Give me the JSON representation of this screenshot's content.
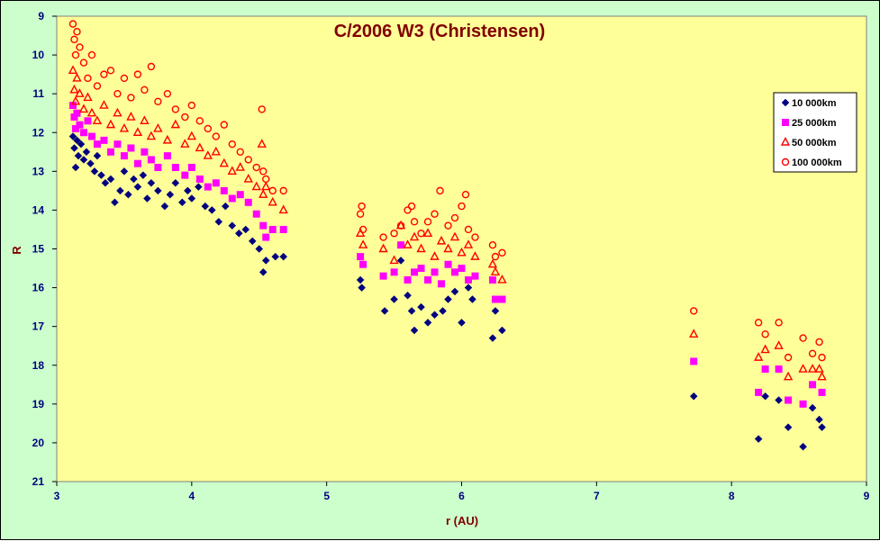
{
  "chart_data": {
    "type": "scatter",
    "title": "C/2006 W3 (Christensen)",
    "xlabel": "r (AU)",
    "ylabel": "R",
    "xlim": [
      3,
      9
    ],
    "ylim": [
      9,
      21
    ],
    "y_inverted": true,
    "x_ticks": [
      3,
      4,
      5,
      6,
      7,
      8,
      9
    ],
    "y_ticks": [
      9,
      10,
      11,
      12,
      13,
      14,
      15,
      16,
      17,
      18,
      19,
      20,
      21
    ],
    "legend_position": "right",
    "plot_background": "#ffff99",
    "outer_background": "#ccffcc",
    "series": [
      {
        "name": "10 000km",
        "marker": "diamond",
        "color": "#000080",
        "points": [
          [
            3.12,
            12.1
          ],
          [
            3.13,
            12.4
          ],
          [
            3.14,
            12.9
          ],
          [
            3.15,
            12.2
          ],
          [
            3.16,
            12.6
          ],
          [
            3.18,
            12.3
          ],
          [
            3.2,
            12.7
          ],
          [
            3.22,
            12.5
          ],
          [
            3.25,
            12.8
          ],
          [
            3.28,
            13.0
          ],
          [
            3.3,
            12.6
          ],
          [
            3.33,
            13.1
          ],
          [
            3.36,
            13.3
          ],
          [
            3.4,
            13.2
          ],
          [
            3.43,
            13.8
          ],
          [
            3.47,
            13.5
          ],
          [
            3.5,
            13.0
          ],
          [
            3.53,
            13.6
          ],
          [
            3.57,
            13.2
          ],
          [
            3.6,
            13.4
          ],
          [
            3.64,
            13.1
          ],
          [
            3.67,
            13.7
          ],
          [
            3.7,
            13.3
          ],
          [
            3.75,
            13.5
          ],
          [
            3.8,
            13.9
          ],
          [
            3.84,
            13.6
          ],
          [
            3.88,
            13.3
          ],
          [
            3.93,
            13.8
          ],
          [
            3.97,
            13.5
          ],
          [
            4.0,
            13.7
          ],
          [
            4.05,
            13.4
          ],
          [
            4.1,
            13.9
          ],
          [
            4.15,
            14.0
          ],
          [
            4.2,
            14.3
          ],
          [
            4.25,
            13.9
          ],
          [
            4.3,
            14.4
          ],
          [
            4.35,
            14.6
          ],
          [
            4.4,
            14.5
          ],
          [
            4.45,
            14.8
          ],
          [
            4.5,
            15.0
          ],
          [
            4.53,
            15.6
          ],
          [
            4.55,
            15.3
          ],
          [
            4.62,
            15.2
          ],
          [
            4.68,
            15.2
          ],
          [
            5.25,
            15.8
          ],
          [
            5.26,
            16.0
          ],
          [
            5.43,
            16.6
          ],
          [
            5.5,
            16.3
          ],
          [
            5.55,
            15.3
          ],
          [
            5.6,
            16.2
          ],
          [
            5.63,
            16.6
          ],
          [
            5.65,
            17.1
          ],
          [
            5.7,
            16.5
          ],
          [
            5.75,
            16.9
          ],
          [
            5.8,
            16.7
          ],
          [
            5.86,
            16.6
          ],
          [
            5.9,
            16.3
          ],
          [
            5.95,
            16.1
          ],
          [
            6.0,
            16.9
          ],
          [
            6.05,
            16.0
          ],
          [
            6.08,
            16.3
          ],
          [
            6.23,
            17.3
          ],
          [
            6.25,
            16.6
          ],
          [
            6.3,
            17.1
          ],
          [
            7.72,
            18.8
          ],
          [
            8.2,
            19.9
          ],
          [
            8.25,
            18.8
          ],
          [
            8.35,
            18.9
          ],
          [
            8.42,
            19.6
          ],
          [
            8.53,
            20.1
          ],
          [
            8.6,
            19.1
          ],
          [
            8.65,
            19.4
          ],
          [
            8.67,
            19.6
          ]
        ]
      },
      {
        "name": "25 000km",
        "marker": "square",
        "color": "#ff00ff",
        "points": [
          [
            3.12,
            11.3
          ],
          [
            3.13,
            11.6
          ],
          [
            3.14,
            11.9
          ],
          [
            3.15,
            11.5
          ],
          [
            3.17,
            11.8
          ],
          [
            3.2,
            12.0
          ],
          [
            3.23,
            11.7
          ],
          [
            3.26,
            12.1
          ],
          [
            3.3,
            12.3
          ],
          [
            3.35,
            12.2
          ],
          [
            3.4,
            12.5
          ],
          [
            3.45,
            12.3
          ],
          [
            3.5,
            12.6
          ],
          [
            3.55,
            12.4
          ],
          [
            3.6,
            12.8
          ],
          [
            3.65,
            12.5
          ],
          [
            3.7,
            12.7
          ],
          [
            3.75,
            12.9
          ],
          [
            3.82,
            12.6
          ],
          [
            3.88,
            12.9
          ],
          [
            3.95,
            13.1
          ],
          [
            4.0,
            12.9
          ],
          [
            4.06,
            13.2
          ],
          [
            4.12,
            13.4
          ],
          [
            4.18,
            13.3
          ],
          [
            4.24,
            13.5
          ],
          [
            4.3,
            13.7
          ],
          [
            4.36,
            13.6
          ],
          [
            4.42,
            13.8
          ],
          [
            4.48,
            14.1
          ],
          [
            4.53,
            14.4
          ],
          [
            4.55,
            14.7
          ],
          [
            4.6,
            14.5
          ],
          [
            4.68,
            14.5
          ],
          [
            5.25,
            15.2
          ],
          [
            5.27,
            15.4
          ],
          [
            5.42,
            15.7
          ],
          [
            5.5,
            15.6
          ],
          [
            5.55,
            14.9
          ],
          [
            5.6,
            15.8
          ],
          [
            5.65,
            15.6
          ],
          [
            5.7,
            15.5
          ],
          [
            5.75,
            15.8
          ],
          [
            5.8,
            15.6
          ],
          [
            5.85,
            15.9
          ],
          [
            5.9,
            15.4
          ],
          [
            5.95,
            15.6
          ],
          [
            6.0,
            15.5
          ],
          [
            6.05,
            15.8
          ],
          [
            6.1,
            15.7
          ],
          [
            6.23,
            15.8
          ],
          [
            6.25,
            16.3
          ],
          [
            6.3,
            16.3
          ],
          [
            7.72,
            17.9
          ],
          [
            8.2,
            18.7
          ],
          [
            8.25,
            18.1
          ],
          [
            8.35,
            18.1
          ],
          [
            8.42,
            18.9
          ],
          [
            8.53,
            19.0
          ],
          [
            8.6,
            18.5
          ],
          [
            8.67,
            18.7
          ]
        ]
      },
      {
        "name": "50 000km",
        "marker": "triangle",
        "color": "#ff0000",
        "points": [
          [
            3.12,
            10.4
          ],
          [
            3.13,
            10.9
          ],
          [
            3.14,
            11.2
          ],
          [
            3.15,
            10.6
          ],
          [
            3.17,
            11.0
          ],
          [
            3.2,
            11.4
          ],
          [
            3.23,
            11.1
          ],
          [
            3.26,
            11.5
          ],
          [
            3.3,
            11.7
          ],
          [
            3.35,
            11.3
          ],
          [
            3.4,
            11.8
          ],
          [
            3.45,
            11.5
          ],
          [
            3.5,
            11.9
          ],
          [
            3.55,
            11.6
          ],
          [
            3.6,
            12.0
          ],
          [
            3.65,
            11.7
          ],
          [
            3.7,
            12.1
          ],
          [
            3.75,
            11.9
          ],
          [
            3.82,
            12.2
          ],
          [
            3.88,
            11.8
          ],
          [
            3.95,
            12.3
          ],
          [
            4.0,
            12.1
          ],
          [
            4.06,
            12.4
          ],
          [
            4.12,
            12.6
          ],
          [
            4.18,
            12.5
          ],
          [
            4.24,
            12.8
          ],
          [
            4.3,
            13.0
          ],
          [
            4.36,
            12.9
          ],
          [
            4.42,
            13.2
          ],
          [
            4.48,
            13.4
          ],
          [
            4.52,
            12.3
          ],
          [
            4.53,
            13.6
          ],
          [
            4.55,
            13.4
          ],
          [
            4.6,
            13.8
          ],
          [
            4.68,
            14.0
          ],
          [
            5.25,
            14.6
          ],
          [
            5.27,
            14.9
          ],
          [
            5.42,
            15.0
          ],
          [
            5.5,
            15.3
          ],
          [
            5.55,
            14.4
          ],
          [
            5.6,
            14.9
          ],
          [
            5.65,
            14.7
          ],
          [
            5.7,
            15.0
          ],
          [
            5.75,
            14.6
          ],
          [
            5.8,
            15.2
          ],
          [
            5.85,
            14.8
          ],
          [
            5.9,
            15.0
          ],
          [
            5.95,
            14.7
          ],
          [
            6.0,
            15.1
          ],
          [
            6.05,
            14.9
          ],
          [
            6.1,
            15.2
          ],
          [
            6.23,
            15.4
          ],
          [
            6.25,
            15.6
          ],
          [
            6.3,
            15.8
          ],
          [
            7.72,
            17.2
          ],
          [
            8.2,
            17.8
          ],
          [
            8.25,
            17.6
          ],
          [
            8.35,
            17.5
          ],
          [
            8.42,
            18.3
          ],
          [
            8.53,
            18.1
          ],
          [
            8.6,
            18.1
          ],
          [
            8.65,
            18.1
          ],
          [
            8.67,
            18.3
          ]
        ]
      },
      {
        "name": "100 000km",
        "marker": "circle",
        "color": "#ff0000",
        "points": [
          [
            3.12,
            9.2
          ],
          [
            3.13,
            9.6
          ],
          [
            3.14,
            10.0
          ],
          [
            3.15,
            9.4
          ],
          [
            3.17,
            9.8
          ],
          [
            3.2,
            10.2
          ],
          [
            3.23,
            10.6
          ],
          [
            3.26,
            10.0
          ],
          [
            3.3,
            10.8
          ],
          [
            3.35,
            10.5
          ],
          [
            3.4,
            10.4
          ],
          [
            3.45,
            11.0
          ],
          [
            3.5,
            10.6
          ],
          [
            3.55,
            11.1
          ],
          [
            3.6,
            10.5
          ],
          [
            3.65,
            10.9
          ],
          [
            3.7,
            10.3
          ],
          [
            3.75,
            11.2
          ],
          [
            3.82,
            11.0
          ],
          [
            3.88,
            11.4
          ],
          [
            3.95,
            11.6
          ],
          [
            4.0,
            11.3
          ],
          [
            4.06,
            11.7
          ],
          [
            4.12,
            11.9
          ],
          [
            4.18,
            12.1
          ],
          [
            4.24,
            11.8
          ],
          [
            4.3,
            12.3
          ],
          [
            4.36,
            12.5
          ],
          [
            4.42,
            12.7
          ],
          [
            4.48,
            12.9
          ],
          [
            4.52,
            11.4
          ],
          [
            4.53,
            13.0
          ],
          [
            4.55,
            13.2
          ],
          [
            4.6,
            13.5
          ],
          [
            4.68,
            13.5
          ],
          [
            5.25,
            14.1
          ],
          [
            5.26,
            13.9
          ],
          [
            5.27,
            14.5
          ],
          [
            5.42,
            14.7
          ],
          [
            5.5,
            14.6
          ],
          [
            5.55,
            14.4
          ],
          [
            5.6,
            14.0
          ],
          [
            5.63,
            13.9
          ],
          [
            5.65,
            14.3
          ],
          [
            5.7,
            14.6
          ],
          [
            5.75,
            14.3
          ],
          [
            5.8,
            14.1
          ],
          [
            5.84,
            13.5
          ],
          [
            5.9,
            14.4
          ],
          [
            5.95,
            14.2
          ],
          [
            6.0,
            13.9
          ],
          [
            6.03,
            13.6
          ],
          [
            6.05,
            14.5
          ],
          [
            6.1,
            14.7
          ],
          [
            6.23,
            14.9
          ],
          [
            6.25,
            15.2
          ],
          [
            6.3,
            15.1
          ],
          [
            7.72,
            16.6
          ],
          [
            8.2,
            16.9
          ],
          [
            8.25,
            17.2
          ],
          [
            8.35,
            16.9
          ],
          [
            8.42,
            17.8
          ],
          [
            8.53,
            17.3
          ],
          [
            8.6,
            17.7
          ],
          [
            8.65,
            17.4
          ],
          [
            8.67,
            17.8
          ]
        ]
      }
    ]
  }
}
